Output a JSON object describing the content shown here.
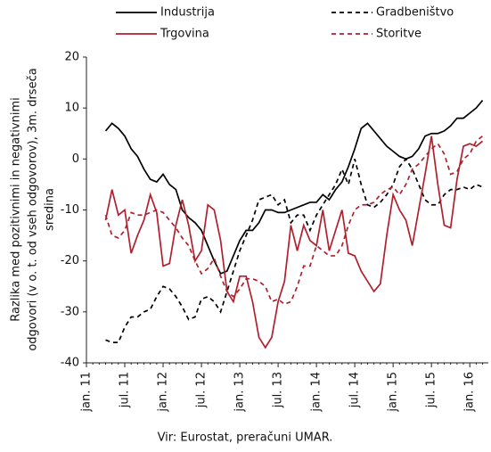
{
  "chart_data": {
    "type": "line",
    "ylabel": [
      "Razlika med pozitivnimi in negativnimi",
      "odgovori (v o. t. od vseh odgovorov), 3m. drseča",
      "sredina"
    ],
    "source": "Vir: Eurostat, preračuni UMAR.",
    "categories": [
      "jan. 11",
      null,
      null,
      null,
      null,
      null,
      "jul. 11",
      null,
      null,
      null,
      null,
      null,
      "jan. 12",
      null,
      null,
      null,
      null,
      null,
      "jul. 12",
      null,
      null,
      null,
      null,
      null,
      "jan. 13",
      null,
      null,
      null,
      null,
      null,
      "jul. 13",
      null,
      null,
      null,
      null,
      null,
      "jan. 14",
      null,
      null,
      null,
      null,
      null,
      "jul. 14",
      null,
      null,
      null,
      null,
      null,
      "jan. 15",
      null,
      null,
      null,
      null,
      null,
      "jul. 15",
      null,
      null,
      null,
      null,
      null,
      "jan. 16",
      null,
      null
    ],
    "ylim": [
      -40,
      20
    ],
    "yticks": [
      -40,
      -30,
      -20,
      -10,
      0,
      10,
      20
    ],
    "series": [
      {
        "name": "Industrija",
        "color": "#000000",
        "dash": false,
        "values": [
          null,
          null,
          null,
          5.5,
          7,
          6,
          4.5,
          2,
          0.5,
          -2,
          -4,
          -4.5,
          -3,
          -5,
          -6,
          -10,
          -11.5,
          -12.5,
          -14,
          -17,
          -20,
          -22.5,
          -22,
          -19,
          -16,
          -14,
          -14,
          -12.5,
          -10,
          -10,
          -10.5,
          -10.5,
          -10,
          -9.5,
          -9,
          -8.5,
          -8.5,
          -7,
          -8,
          -6,
          -4.5,
          -1.5,
          2,
          6,
          7,
          5.5,
          4,
          2.5,
          1.5,
          0.5,
          0,
          0.5,
          2,
          4.5,
          5,
          5,
          5.5,
          6.5,
          8,
          8,
          9,
          10,
          11.5
        ]
      },
      {
        "name": "Gradbeništvo",
        "color": "#000000",
        "dash": true,
        "values": [
          null,
          null,
          null,
          -35.5,
          -36,
          -36,
          -33,
          -31,
          -31,
          -30,
          -29.5,
          -27,
          -25,
          -25.5,
          -27,
          -29,
          -31.5,
          -31,
          -27.5,
          -27,
          -28,
          -30,
          -26,
          -22,
          -18,
          -15,
          -12,
          -8,
          -7.5,
          -7,
          -9,
          -8,
          -12.5,
          -11,
          -11,
          -14,
          -11,
          -9,
          -7,
          -5,
          -2,
          -5,
          0,
          -5,
          -9,
          -9.5,
          -8.5,
          -7,
          -5,
          -1.5,
          0,
          -2,
          -5,
          -8,
          -9,
          -9,
          -7,
          -6,
          -6,
          -5.5,
          -6,
          -5,
          -5.5
        ]
      },
      {
        "name": "Trgovina",
        "color": "#b0202e",
        "dash": false,
        "values": [
          null,
          null,
          null,
          -12,
          -6,
          -11,
          -10,
          -18.5,
          -15,
          -12,
          -7,
          -10.5,
          -21,
          -20.5,
          -13,
          -8,
          -13,
          -20,
          -18,
          -9,
          -10,
          -16,
          -26,
          -28,
          -23,
          -23,
          -28,
          -35,
          -37,
          -35,
          -28,
          -24,
          -13,
          -18,
          -13,
          -16,
          -17,
          -10,
          -18,
          -14,
          -10,
          -18.5,
          -19,
          -22,
          -24,
          -26,
          -24.5,
          -15,
          -7,
          -10,
          -12,
          -17,
          -10,
          -3,
          4.5,
          -5,
          -13,
          -13.5,
          -4,
          2.5,
          3,
          2.5,
          3.5
        ]
      },
      {
        "name": "Storitve",
        "color": "#b0202e",
        "dash": true,
        "values": [
          null,
          null,
          null,
          -11,
          -15,
          -15.5,
          -14,
          -10.5,
          -11,
          -11,
          -10.5,
          -10,
          -10.5,
          -12,
          -13.5,
          -15.5,
          -17,
          -20,
          -22.5,
          -21.5,
          -19.5,
          -23,
          -26,
          -27,
          -25.5,
          -23.5,
          -23.5,
          -24,
          -25,
          -28,
          -27.5,
          -28.5,
          -28,
          -25,
          -21,
          -21,
          -17,
          -18,
          -19,
          -19,
          -17,
          -13,
          -10,
          -9,
          -9,
          -8.5,
          -7,
          -6,
          -5.5,
          -7,
          -5,
          -2,
          -1,
          0.5,
          2,
          3,
          1,
          -3,
          -2.5,
          0,
          1,
          3.5,
          4.5
        ]
      }
    ]
  }
}
